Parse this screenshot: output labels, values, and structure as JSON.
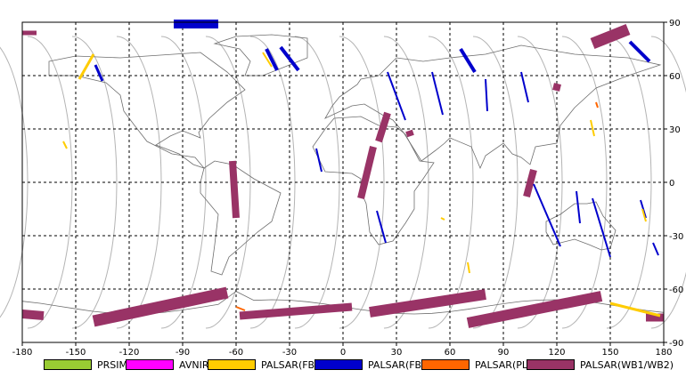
{
  "chart_data": {
    "type": "map",
    "title": "",
    "xlim": [
      -180,
      180
    ],
    "ylim": [
      -90,
      90
    ],
    "x_ticks": [
      "-180",
      "-150",
      "-120",
      "-90",
      "-60",
      "-30",
      "0",
      "30",
      "60",
      "90",
      "120",
      "150",
      "180"
    ],
    "y_ticks": [
      "90",
      "60",
      "30",
      "0",
      "-30",
      "-60",
      "-90"
    ],
    "grid": true,
    "legend_position": "bottom",
    "legend": [
      {
        "label": "PRSIM",
        "color": "#99cc33"
      },
      {
        "label": "AVNIR-2",
        "color": "#ff00ff"
      },
      {
        "label": "PALSAR(FBS)",
        "color": "#ffcc00"
      },
      {
        "label": "PALSAR(FBD)",
        "color": "#0000cc"
      },
      {
        "label": "PALSAR(PLR)",
        "color": "#ff6600"
      },
      {
        "label": "PALSAR(WB1/WB2)",
        "color": "#993366"
      }
    ],
    "swaths": [
      {
        "sensor": "PALSAR(WB1/WB2)",
        "path": [
          [
            -60,
            -20
          ],
          [
            -62,
            12
          ]
        ],
        "width": 8
      },
      {
        "sensor": "PALSAR(WB1/WB2)",
        "path": [
          [
            10,
            -9
          ],
          [
            17,
            20
          ]
        ],
        "width": 8
      },
      {
        "sensor": "PALSAR(WB1/WB2)",
        "path": [
          [
            20,
            23
          ],
          [
            25,
            39
          ]
        ],
        "width": 8
      },
      {
        "sensor": "PALSAR(WB1/WB2)",
        "path": [
          [
            103,
            -8
          ],
          [
            107,
            7
          ]
        ],
        "width": 8
      },
      {
        "sensor": "PALSAR(WB1/WB2)",
        "path": [
          [
            140,
            78
          ],
          [
            160,
            86
          ]
        ],
        "width": 13
      },
      {
        "sensor": "PALSAR(WB1/WB2)",
        "path": [
          [
            -140,
            -78
          ],
          [
            -65,
            -62
          ]
        ],
        "width": 13
      },
      {
        "sensor": "PALSAR(WB1/WB2)",
        "path": [
          [
            -58,
            -75
          ],
          [
            5,
            -70
          ]
        ],
        "width": 9
      },
      {
        "sensor": "PALSAR(WB1/WB2)",
        "path": [
          [
            15,
            -73
          ],
          [
            80,
            -63
          ]
        ],
        "width": 12
      },
      {
        "sensor": "PALSAR(WB1/WB2)",
        "path": [
          [
            70,
            -79
          ],
          [
            145,
            -64
          ]
        ],
        "width": 12
      },
      {
        "sensor": "PALSAR(WB1/WB2)",
        "path": [
          [
            -180,
            -74
          ],
          [
            -168,
            -75
          ]
        ],
        "width": 10
      },
      {
        "sensor": "PALSAR(WB1/WB2)",
        "path": [
          [
            170,
            -76
          ],
          [
            180,
            -76
          ]
        ],
        "width": 9
      },
      {
        "sensor": "PALSAR(WB1/WB2)",
        "path": [
          [
            -180,
            84
          ],
          [
            -172,
            84
          ]
        ],
        "width": 5
      },
      {
        "sensor": "PALSAR(WB1/WB2)",
        "path": [
          [
            37,
            29
          ],
          [
            38,
            26
          ]
        ],
        "width": 8
      },
      {
        "sensor": "PALSAR(WB1/WB2)",
        "path": [
          [
            118,
            54
          ],
          [
            122,
            53
          ]
        ],
        "width": 8
      },
      {
        "sensor": "PALSAR(FBD)",
        "path": [
          [
            -95,
            89
          ],
          [
            -70,
            89
          ]
        ],
        "width": 10
      },
      {
        "sensor": "PALSAR(FBD)",
        "path": [
          [
            -43,
            75
          ],
          [
            -37,
            63
          ]
        ],
        "width": 4
      },
      {
        "sensor": "PALSAR(FBD)",
        "path": [
          [
            -35,
            76
          ],
          [
            -25,
            63
          ]
        ],
        "width": 4
      },
      {
        "sensor": "PALSAR(FBD)",
        "path": [
          [
            -139,
            66
          ],
          [
            -135,
            57
          ]
        ],
        "width": 3
      },
      {
        "sensor": "PALSAR(FBD)",
        "path": [
          [
            25,
            62
          ],
          [
            35,
            35
          ]
        ],
        "width": 2
      },
      {
        "sensor": "PALSAR(FBD)",
        "path": [
          [
            50,
            62
          ],
          [
            56,
            38
          ]
        ],
        "width": 2
      },
      {
        "sensor": "PALSAR(FBD)",
        "path": [
          [
            66,
            75
          ],
          [
            74,
            62
          ]
        ],
        "width": 4
      },
      {
        "sensor": "PALSAR(FBD)",
        "path": [
          [
            80,
            58
          ],
          [
            81,
            40
          ]
        ],
        "width": 2
      },
      {
        "sensor": "PALSAR(FBD)",
        "path": [
          [
            100,
            62
          ],
          [
            104,
            45
          ]
        ],
        "width": 2
      },
      {
        "sensor": "PALSAR(FBD)",
        "path": [
          [
            107,
            -1
          ],
          [
            122,
            -36
          ]
        ],
        "width": 2
      },
      {
        "sensor": "PALSAR(FBD)",
        "path": [
          [
            140,
            -9
          ],
          [
            150,
            -42
          ]
        ],
        "width": 2
      },
      {
        "sensor": "PALSAR(FBD)",
        "path": [
          [
            161,
            79
          ],
          [
            172,
            68
          ]
        ],
        "width": 4
      },
      {
        "sensor": "PALSAR(FBD)",
        "path": [
          [
            19,
            -16
          ],
          [
            24,
            -34
          ]
        ],
        "width": 2
      },
      {
        "sensor": "PALSAR(FBD)",
        "path": [
          [
            -15,
            19
          ],
          [
            -12,
            6
          ]
        ],
        "width": 2
      },
      {
        "sensor": "PALSAR(FBD)",
        "path": [
          [
            167,
            -10
          ],
          [
            170,
            -20
          ]
        ],
        "width": 2
      },
      {
        "sensor": "PALSAR(FBD)",
        "path": [
          [
            174,
            -34
          ],
          [
            177,
            -41
          ]
        ],
        "width": 2
      },
      {
        "sensor": "PALSAR(FBD)",
        "path": [
          [
            131,
            -5
          ],
          [
            133,
            -23
          ]
        ],
        "width": 2
      },
      {
        "sensor": "PALSAR(FBS)",
        "path": [
          [
            -140,
            72
          ],
          [
            -148,
            58
          ]
        ],
        "width": 3
      },
      {
        "sensor": "PALSAR(FBS)",
        "path": [
          [
            -45,
            73
          ],
          [
            -40,
            65
          ]
        ],
        "width": 2
      },
      {
        "sensor": "PALSAR(FBS)",
        "path": [
          [
            150,
            -68
          ],
          [
            178,
            -75
          ]
        ],
        "width": 3
      },
      {
        "sensor": "PALSAR(FBS)",
        "path": [
          [
            -157,
            23
          ],
          [
            -155,
            19
          ]
        ],
        "width": 2
      },
      {
        "sensor": "PALSAR(FBS)",
        "path": [
          [
            139,
            35
          ],
          [
            141,
            26
          ]
        ],
        "width": 2
      },
      {
        "sensor": "PALSAR(FBS)",
        "path": [
          [
            70,
            -45
          ],
          [
            71,
            -51
          ]
        ],
        "width": 2
      },
      {
        "sensor": "PALSAR(FBS)",
        "path": [
          [
            168,
            -15
          ],
          [
            170,
            -22
          ]
        ],
        "width": 2
      },
      {
        "sensor": "PALSAR(FBS)",
        "path": [
          [
            55,
            -20
          ],
          [
            57,
            -21
          ]
        ],
        "width": 2
      },
      {
        "sensor": "PALSAR(PLR)",
        "path": [
          [
            142,
            45
          ],
          [
            143,
            42
          ]
        ],
        "width": 2
      },
      {
        "sensor": "PALSAR(PLR)",
        "path": [
          [
            -60,
            -70
          ],
          [
            -55,
            -72
          ]
        ],
        "width": 2
      }
    ]
  }
}
